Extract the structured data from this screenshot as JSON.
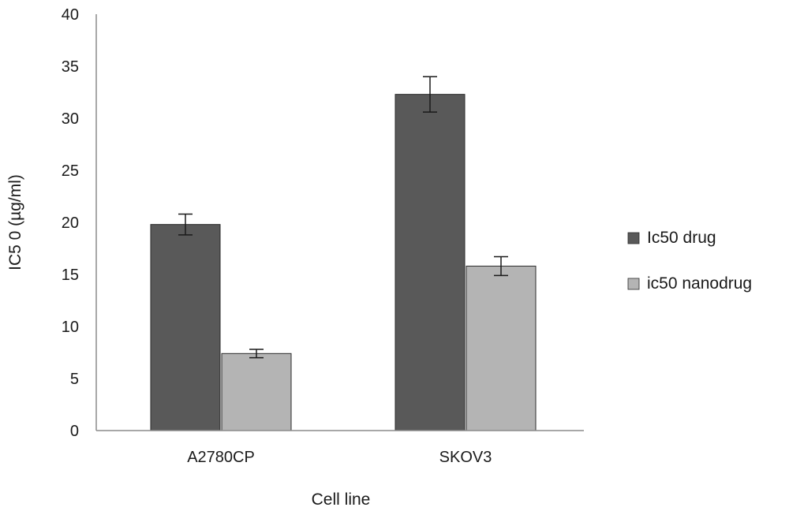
{
  "chart_data": {
    "type": "bar",
    "title": "",
    "xlabel": "Cell line",
    "ylabel": "IC5 0 (µg/ml)",
    "ylim": [
      0,
      40
    ],
    "yticks": [
      0,
      5,
      10,
      15,
      20,
      25,
      30,
      35,
      40
    ],
    "grid": false,
    "legend_position": "right",
    "categories": [
      "A2780CP",
      "SKOV3"
    ],
    "series": [
      {
        "name": "Ic50 drug",
        "color": "#595959",
        "values": [
          19.8,
          32.3
        ],
        "errors": [
          1.0,
          1.7
        ]
      },
      {
        "name": "ic50 nanodrug",
        "color": "#b4b4b4",
        "values": [
          7.4,
          15.8
        ],
        "errors": [
          0.4,
          0.9
        ]
      }
    ]
  }
}
